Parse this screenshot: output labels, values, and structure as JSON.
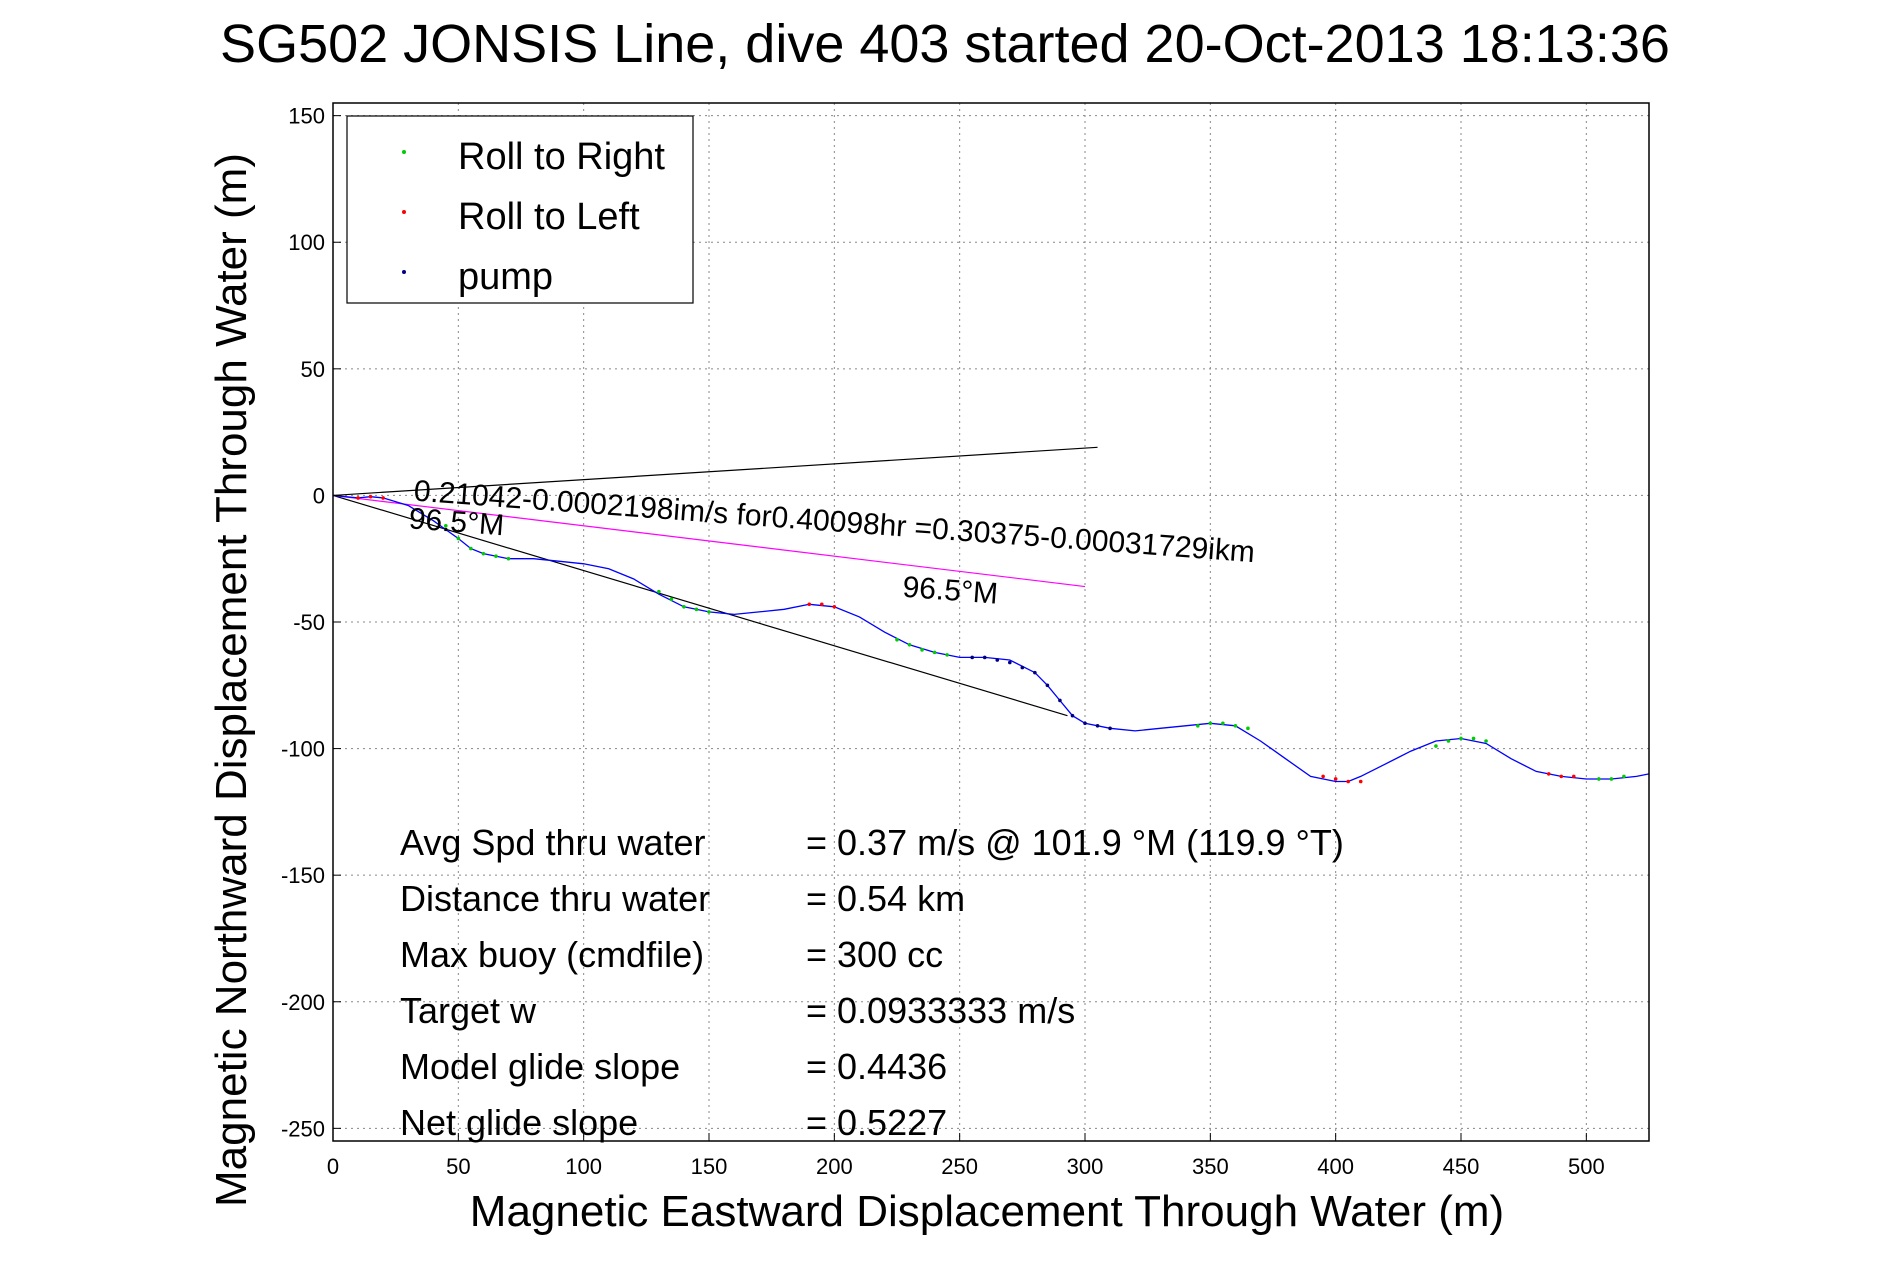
{
  "chart_data": {
    "type": "line",
    "title": "SG502 JONSIS Line, dive 403 started 20-Oct-2013 18:13:36",
    "xlabel": "Magnetic Eastward Displacement Through Water (m)",
    "ylabel": "Magnetic Northward Displacement Through Water (m)",
    "xlim": [
      0,
      525
    ],
    "ylim": [
      -255,
      155
    ],
    "grid": true,
    "legend_position": "top-left",
    "xticks": [
      0,
      50,
      100,
      150,
      200,
      250,
      300,
      350,
      400,
      450,
      500
    ],
    "yticks": [
      150,
      100,
      50,
      0,
      -50,
      -100,
      -150,
      -200,
      -250
    ],
    "legend": [
      {
        "label": "Roll to Right",
        "color": "#00cc00"
      },
      {
        "label": "Roll to Left",
        "color": "#ff0000"
      },
      {
        "label": "pump",
        "color": "#000080"
      }
    ],
    "series": [
      {
        "color": "#0000ff",
        "x": [
          0,
          5,
          10,
          15,
          20,
          30,
          40,
          50,
          55,
          60,
          70,
          80,
          90,
          100,
          110,
          120,
          130,
          140,
          150,
          160,
          170,
          180,
          190,
          200,
          210,
          220,
          230,
          240,
          250,
          260,
          270,
          280,
          285,
          290,
          295,
          300,
          310,
          320,
          330,
          340,
          350,
          360,
          370,
          380,
          390,
          400,
          405,
          410,
          420,
          430,
          440,
          450,
          460,
          470,
          480,
          490,
          500,
          510,
          520,
          525
        ],
        "y": [
          0,
          -0.5,
          -1,
          -0.5,
          -1,
          -4,
          -10,
          -17,
          -21,
          -23,
          -25,
          -25,
          -26,
          -27,
          -29,
          -33,
          -39,
          -44,
          -46,
          -47,
          -46,
          -45,
          -43,
          -44,
          -48,
          -54,
          -59,
          -62,
          -64,
          -64,
          -65,
          -70,
          -75,
          -81,
          -87,
          -90,
          -92,
          -93,
          -92,
          -91,
          -90,
          -91,
          -97,
          -104,
          -111,
          -113,
          -113,
          -111,
          -106,
          -101,
          -97,
          -96,
          -98,
          -104,
          -109,
          -111,
          -112,
          -112,
          -111,
          -110
        ]
      }
    ],
    "roll_right_points": {
      "x": [
        45,
        50,
        55,
        60,
        65,
        70,
        130,
        135,
        140,
        145,
        150,
        225,
        230,
        235,
        240,
        245,
        345,
        350,
        355,
        360,
        365,
        440,
        445,
        450,
        455,
        460,
        505,
        510,
        515
      ],
      "y": [
        -12,
        -17,
        -21,
        -23,
        -24,
        -25,
        -38,
        -41,
        -44,
        -45,
        -46,
        -57,
        -59,
        -61,
        -62,
        -63,
        -91,
        -90,
        -90,
        -91,
        -92,
        -99,
        -97,
        -96,
        -96,
        -97,
        -112,
        -112,
        -111
      ]
    },
    "roll_left_points": {
      "x": [
        10,
        15,
        20,
        190,
        195,
        200,
        395,
        400,
        405,
        410,
        485,
        490,
        495
      ],
      "y": [
        -1,
        -0.5,
        -1,
        -43,
        -43,
        -44,
        -111,
        -112,
        -113,
        -113,
        -110,
        -111,
        -111
      ]
    },
    "pump_points": {
      "x": [
        255,
        260,
        265,
        270,
        275,
        280,
        285,
        290,
        295,
        300,
        305,
        310
      ],
      "y": [
        -64,
        -64,
        -65,
        -66,
        -68,
        -70,
        -75,
        -81,
        -87,
        -90,
        -91,
        -92
      ]
    },
    "reference_lines": [
      {
        "color": "#000000",
        "x": [
          0,
          305
        ],
        "y": [
          0,
          19
        ]
      },
      {
        "color": "#000000",
        "x": [
          0,
          293
        ],
        "y": [
          0,
          -87
        ]
      },
      {
        "color": "#ff00ff",
        "x": [
          0,
          300
        ],
        "y": [
          0,
          -36
        ]
      }
    ],
    "annotations": [
      {
        "text": "0.21042-0.0002198im/s for0.40098hr =0.30375-0.00031729ikm",
        "x": 32,
        "y": -2,
        "angle_deg": 4.2
      },
      {
        "text": "96.5°M",
        "x": 30,
        "y": -13,
        "angle_deg": 4.2
      },
      {
        "text": "96.5°M",
        "x": 227,
        "y": -40,
        "angle_deg": 4.2
      }
    ],
    "stats": [
      {
        "label": "Avg Spd thru water",
        "value": "=  0.37 m/s @ 101.9 °M (119.9 °T)"
      },
      {
        "label": "Distance thru water",
        "value": "=  0.54 km"
      },
      {
        "label": "Max buoy (cmdfile)",
        "value": "= 300 cc"
      },
      {
        "label": "Target w",
        "value": "= 0.0933333 m/s"
      },
      {
        "label": "Model glide slope",
        "value": "= 0.4436"
      },
      {
        "label": "Net glide slope",
        "value": "= 0.5227"
      }
    ]
  }
}
